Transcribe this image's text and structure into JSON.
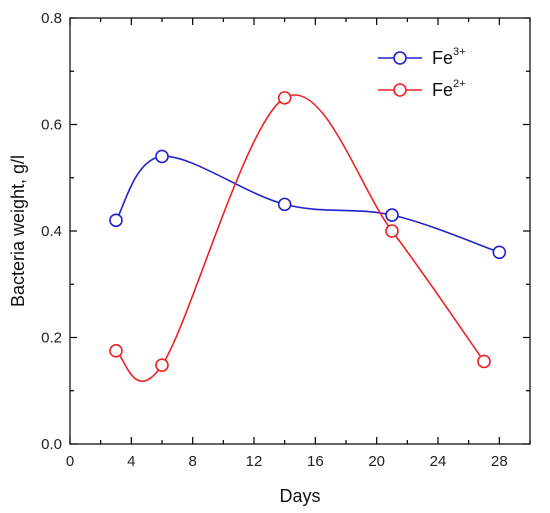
{
  "chart_data": {
    "type": "line",
    "xlabel": "Days",
    "ylabel": "Bacteria weight, g/l",
    "xlim": [
      0,
      30
    ],
    "ylim": [
      0,
      0.8
    ],
    "x_ticks": [
      "0",
      "4",
      "8",
      "12",
      "16",
      "20",
      "24",
      "28"
    ],
    "y_ticks": [
      "0.0",
      "0.2",
      "0.4",
      "0.6",
      "0.8"
    ],
    "legend_position": "top-right",
    "series": [
      {
        "name_base": "Fe",
        "name_sup": "3+",
        "color": "#2222cc",
        "x": [
          3,
          6,
          14,
          21,
          28
        ],
        "y": [
          0.42,
          0.54,
          0.45,
          0.43,
          0.36
        ]
      },
      {
        "name_base": "Fe",
        "name_sup": "2+",
        "color": "#ee2222",
        "x": [
          3,
          6,
          14,
          21,
          27
        ],
        "y": [
          0.175,
          0.148,
          0.65,
          0.4,
          0.155
        ]
      }
    ]
  }
}
